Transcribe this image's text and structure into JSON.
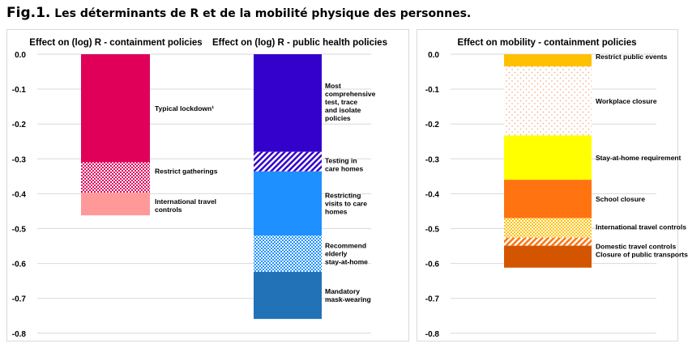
{
  "title": {
    "prefix": "Fig.1.",
    "text": " Les déterminants de R et de la mobilité physique des personnes."
  },
  "chart_data": [
    {
      "type": "bar",
      "stacked": true,
      "title": "Effect on (log) R - containment policies",
      "ylim": [
        -0.8,
        0
      ],
      "yticks": [
        "0.0",
        "-0.1",
        "-0.2",
        "-0.3",
        "-0.4",
        "-0.5",
        "-0.6",
        "-0.7",
        "-0.8"
      ],
      "segments": [
        {
          "label": "Typical lockdown¹",
          "value": -0.31,
          "color": "#e0005a",
          "pattern": "solid"
        },
        {
          "label": "Restrict gatherings",
          "value": -0.087,
          "color": "#e0005a",
          "pattern": "checker"
        },
        {
          "label": "International travel controls",
          "value": -0.065,
          "color": "#ff9999",
          "pattern": "solid"
        }
      ]
    },
    {
      "type": "bar",
      "stacked": true,
      "title": "Effect on (log) R - public health policies",
      "ylim": [
        -0.8,
        0
      ],
      "segments": [
        {
          "label": "Most comprehensive test, trace and isolate policies",
          "value": -0.28,
          "color": "#3300cc",
          "pattern": "solid"
        },
        {
          "label": "Testing in care homes",
          "value": -0.056,
          "color": "#3300cc",
          "pattern": "diag"
        },
        {
          "label": "Restricting visits to care homes",
          "value": -0.184,
          "color": "#1e90ff",
          "pattern": "solid"
        },
        {
          "label": "Recommend elderly stay-at-home",
          "value": -0.104,
          "color": "#1e90ff",
          "pattern": "checker"
        },
        {
          "label": "Mandatory mask-wearing",
          "value": -0.135,
          "color": "#2272b8",
          "pattern": "solid"
        }
      ]
    },
    {
      "type": "bar",
      "stacked": true,
      "title": "Effect on mobility - containment policies",
      "ylim": [
        -0.8,
        0
      ],
      "yticks": [
        "0.0",
        "-0.1",
        "-0.2",
        "-0.3",
        "-0.4",
        "-0.5",
        "-0.6",
        "-0.7",
        "-0.8"
      ],
      "segments": [
        {
          "label": "Restrict public events",
          "value": -0.035,
          "color": "#ffc000",
          "pattern": "solid"
        },
        {
          "label": "Workplace closure",
          "value": -0.198,
          "color": "#f4a070",
          "pattern": "dots"
        },
        {
          "label": "Stay-at-home requirement",
          "value": -0.127,
          "color": "#ffff00",
          "pattern": "solid"
        },
        {
          "label": "School closure",
          "value": -0.11,
          "color": "#ff7410",
          "pattern": "solid"
        },
        {
          "label": "International travel controls",
          "value": -0.056,
          "color": "#ffc000",
          "pattern": "checker"
        },
        {
          "label": "Domestic travel controls",
          "value": -0.023,
          "color": "#ff7410",
          "pattern": "diag"
        },
        {
          "label": "Closure of public transports",
          "value": -0.063,
          "color": "#d45500",
          "pattern": "solid"
        }
      ]
    }
  ]
}
